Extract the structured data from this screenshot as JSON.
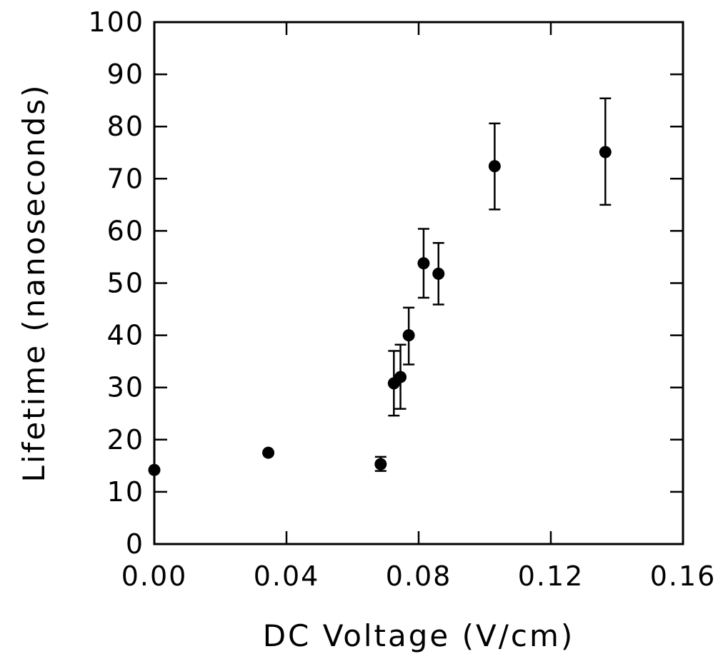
{
  "chart_data": {
    "type": "scatter",
    "title": "",
    "xlabel": "DC Voltage (V/cm)",
    "ylabel": "Lifetime (nanoseconds)",
    "xlim": [
      0.0,
      0.16
    ],
    "ylim": [
      0,
      100
    ],
    "xticks": [
      0.0,
      0.04,
      0.08,
      0.12,
      0.16
    ],
    "xtick_labels": [
      "0.00",
      "0.04",
      "0.08",
      "0.12",
      "0.16"
    ],
    "yticks": [
      0,
      10,
      20,
      30,
      40,
      50,
      60,
      70,
      80,
      90,
      100
    ],
    "ytick_labels": [
      "0",
      "10",
      "20",
      "30",
      "40",
      "50",
      "60",
      "70",
      "80",
      "90",
      "100"
    ],
    "grid": false,
    "legend": "none",
    "marker_color": "#000000",
    "series": [
      {
        "points": [
          {
            "x": 0.0,
            "y": 14.2,
            "err_low": null,
            "err_high": null
          },
          {
            "x": 0.0345,
            "y": 17.5,
            "err_low": null,
            "err_high": null
          },
          {
            "x": 0.0685,
            "y": 15.3,
            "err_low": 14.0,
            "err_high": 16.7
          },
          {
            "x": 0.0725,
            "y": 30.8,
            "err_low": 24.6,
            "err_high": 37.0
          },
          {
            "x": 0.0745,
            "y": 32.0,
            "err_low": 25.9,
            "err_high": 38.2
          },
          {
            "x": 0.077,
            "y": 40.0,
            "err_low": 34.4,
            "err_high": 45.3
          },
          {
            "x": 0.0815,
            "y": 53.8,
            "err_low": 47.2,
            "err_high": 60.4
          },
          {
            "x": 0.086,
            "y": 51.8,
            "err_low": 45.9,
            "err_high": 57.7
          },
          {
            "x": 0.103,
            "y": 72.4,
            "err_low": 64.1,
            "err_high": 80.6
          },
          {
            "x": 0.1365,
            "y": 75.1,
            "err_low": 65.0,
            "err_high": 85.4
          }
        ]
      }
    ]
  }
}
